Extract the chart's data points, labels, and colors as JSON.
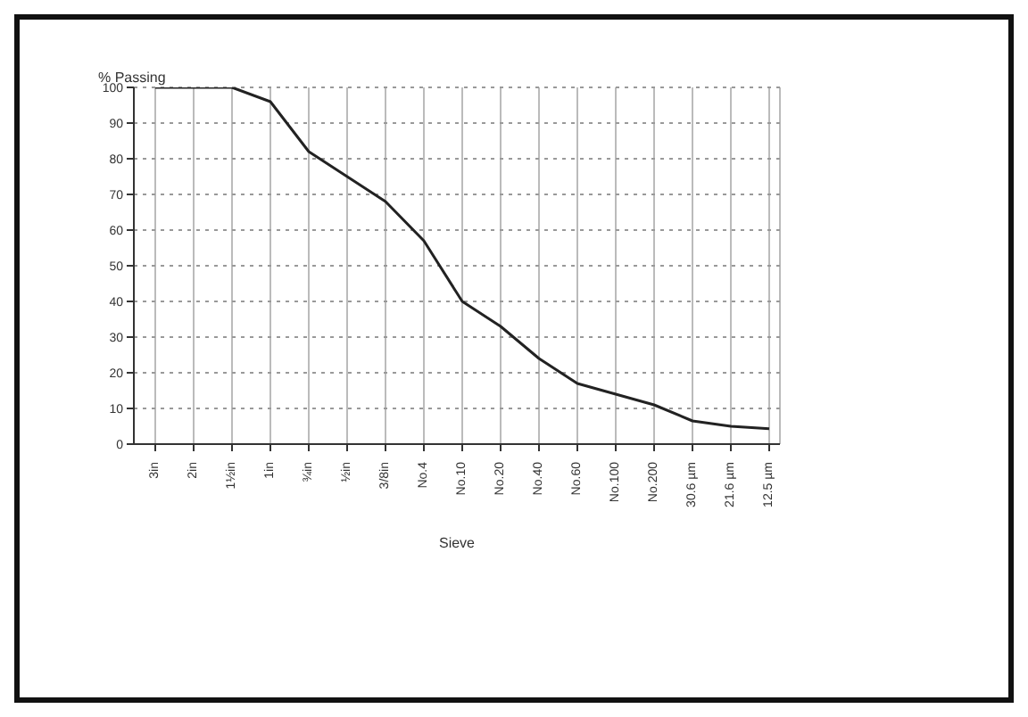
{
  "chart_data": {
    "type": "line",
    "xlabel": "Sieve",
    "ylabel": "% Passing",
    "grid": true,
    "marker": "none",
    "line_style": "solid",
    "categories": [
      "3in",
      "2in",
      "1½in",
      "1in",
      "¾in",
      "½in",
      "3/8in",
      "No.4",
      "No.10",
      "No.20",
      "No.40",
      "No.60",
      "No.100",
      "No.200",
      "30.6 µm",
      "21.6 µm",
      "12.5 µm"
    ],
    "series": [
      {
        "color": "#222222",
        "values": [
          100,
          100,
          100,
          96,
          82,
          75,
          68,
          57,
          40,
          33,
          24,
          17,
          14,
          11,
          6.5,
          5,
          4.3
        ]
      }
    ],
    "ylim": [
      0,
      100
    ],
    "yticks": [
      0,
      10,
      20,
      30,
      40,
      50,
      60,
      70,
      80,
      90,
      100
    ]
  }
}
